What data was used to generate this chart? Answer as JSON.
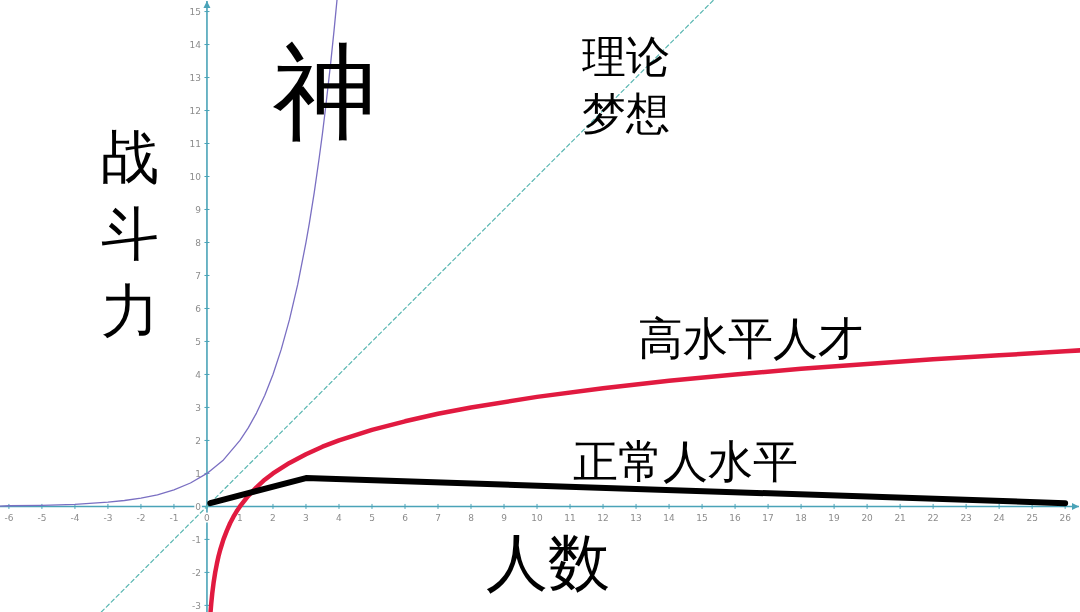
{
  "chart_data": {
    "type": "line",
    "xlabel": "人数",
    "ylabel": "战斗力",
    "xlim": [
      -6.27,
      26.45
    ],
    "ylim": [
      -3.2,
      15.35
    ],
    "xticks": [
      -6,
      -5,
      -4,
      -3,
      -2,
      -1,
      0,
      1,
      2,
      3,
      4,
      5,
      6,
      7,
      8,
      9,
      10,
      11,
      12,
      13,
      14,
      15,
      16,
      17,
      18,
      19,
      20,
      21,
      22,
      23,
      24,
      25,
      26
    ],
    "yticks": [
      -3,
      -2,
      -1,
      0,
      1,
      2,
      3,
      4,
      5,
      6,
      7,
      8,
      9,
      10,
      11,
      12,
      13,
      14,
      15
    ],
    "series": [
      {
        "name": "神",
        "color": "#7a6fc2",
        "x": [
          -6.27,
          -6,
          -5,
          -4,
          -3,
          -2.5,
          -2,
          -1.5,
          -1,
          -0.5,
          0,
          0.5,
          1,
          1.25,
          1.5,
          1.75,
          2,
          2.25,
          2.5,
          2.75,
          3,
          3.1,
          3.25,
          3.4,
          3.5,
          3.6,
          3.75,
          3.85,
          3.94
        ],
        "values": [
          0.01,
          0.02,
          0.03,
          0.06,
          0.13,
          0.18,
          0.25,
          0.35,
          0.5,
          0.71,
          1,
          1.41,
          2,
          2.38,
          2.83,
          3.36,
          4,
          4.76,
          5.66,
          6.73,
          8,
          8.57,
          9.51,
          10.56,
          11.31,
          12.13,
          13.45,
          14.42,
          15.35
        ]
      },
      {
        "name": "理论梦想",
        "color": "#5ab7b2",
        "line_style": "dashed",
        "x": [
          -3.2,
          15.35
        ],
        "values": [
          -3.2,
          15.35
        ]
      },
      {
        "name": "高水平人才",
        "color": "#e11a40",
        "x": [
          0.11,
          0.13,
          0.16,
          0.2,
          0.25,
          0.3,
          0.35,
          0.4,
          0.5,
          0.6,
          0.7,
          0.8,
          0.9,
          1,
          1.25,
          1.5,
          1.75,
          2,
          2.5,
          3,
          3.5,
          4,
          5,
          6,
          7,
          8,
          10,
          12,
          14,
          16,
          18,
          20,
          22,
          24,
          26,
          26.45
        ],
        "values": [
          -3.18,
          -2.94,
          -2.64,
          -2.32,
          -2,
          -1.74,
          -1.51,
          -1.32,
          -1,
          -0.74,
          -0.51,
          -0.32,
          -0.15,
          0,
          0.32,
          0.58,
          0.81,
          1,
          1.32,
          1.58,
          1.81,
          2,
          2.32,
          2.58,
          2.81,
          3,
          3.32,
          3.58,
          3.81,
          4,
          4.17,
          4.32,
          4.46,
          4.58,
          4.7,
          4.73
        ]
      },
      {
        "name": "正常人水平",
        "color": "#000000",
        "x": [
          0.1,
          3,
          26
        ],
        "values": [
          0.1,
          0.86,
          0.1
        ]
      }
    ]
  }
}
